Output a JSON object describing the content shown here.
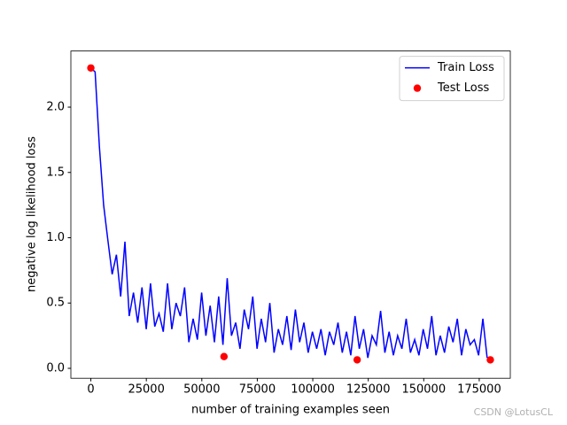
{
  "chart_data": {
    "type": "line",
    "xlabel": "number of training examples seen",
    "ylabel": "negative log likelihood loss",
    "watermark": "CSDN @LotusCL",
    "legend": "upper right",
    "xlim": [
      -9000,
      189000
    ],
    "ylim": [
      -0.076,
      2.43
    ],
    "xticks": [
      0,
      25000,
      50000,
      75000,
      100000,
      125000,
      150000,
      175000
    ],
    "yticks": [
      {
        "value": 0,
        "label": "0.0"
      },
      0.5,
      {
        "value": 1,
        "label": "1.0"
      },
      1.5,
      {
        "value": 2,
        "label": "2.0"
      }
    ],
    "series": [
      {
        "name": "Train Loss",
        "type": "line",
        "color": "#0000ff",
        "x": [
          0,
          1920,
          3840,
          5760,
          7680,
          9600,
          11520,
          13440,
          15360,
          17280,
          19200,
          21120,
          23040,
          24960,
          26880,
          28800,
          30720,
          32640,
          34560,
          36480,
          38400,
          40320,
          42240,
          44160,
          46080,
          48000,
          49920,
          51840,
          53760,
          55680,
          57600,
          59520,
          61440,
          63360,
          65280,
          67200,
          69120,
          71040,
          72960,
          74880,
          76800,
          78720,
          80640,
          82560,
          84480,
          86400,
          88320,
          90240,
          92160,
          94080,
          96000,
          97920,
          99840,
          101760,
          103680,
          105600,
          107520,
          109440,
          111360,
          113280,
          115200,
          117120,
          119040,
          120960,
          122880,
          124800,
          126720,
          128640,
          130560,
          132480,
          134400,
          136320,
          138240,
          140160,
          142080,
          144000,
          145920,
          147840,
          149760,
          151680,
          153600,
          155520,
          157440,
          159360,
          161280,
          163200,
          165120,
          167040,
          168960,
          170880,
          172800,
          174720,
          176640,
          178560
        ],
        "values": [
          2.3,
          2.27,
          1.7,
          1.25,
          0.98,
          0.72,
          0.87,
          0.55,
          0.97,
          0.4,
          0.58,
          0.35,
          0.62,
          0.3,
          0.65,
          0.32,
          0.42,
          0.28,
          0.65,
          0.3,
          0.5,
          0.4,
          0.62,
          0.2,
          0.38,
          0.22,
          0.58,
          0.25,
          0.48,
          0.2,
          0.55,
          0.18,
          0.69,
          0.25,
          0.35,
          0.15,
          0.45,
          0.3,
          0.55,
          0.15,
          0.38,
          0.2,
          0.5,
          0.12,
          0.3,
          0.18,
          0.4,
          0.14,
          0.45,
          0.2,
          0.35,
          0.12,
          0.28,
          0.15,
          0.3,
          0.1,
          0.28,
          0.18,
          0.35,
          0.12,
          0.28,
          0.1,
          0.4,
          0.15,
          0.3,
          0.08,
          0.25,
          0.18,
          0.44,
          0.12,
          0.28,
          0.1,
          0.25,
          0.15,
          0.38,
          0.12,
          0.22,
          0.1,
          0.3,
          0.15,
          0.4,
          0.1,
          0.25,
          0.12,
          0.32,
          0.2,
          0.38,
          0.1,
          0.3,
          0.18,
          0.22,
          0.1,
          0.38,
          0.08
        ]
      },
      {
        "name": "Test Loss",
        "type": "scatter",
        "color": "#ff0000",
        "x": [
          0,
          60000,
          120000,
          180000
        ],
        "values": [
          2.3,
          0.09,
          0.065,
          0.065
        ]
      }
    ]
  }
}
